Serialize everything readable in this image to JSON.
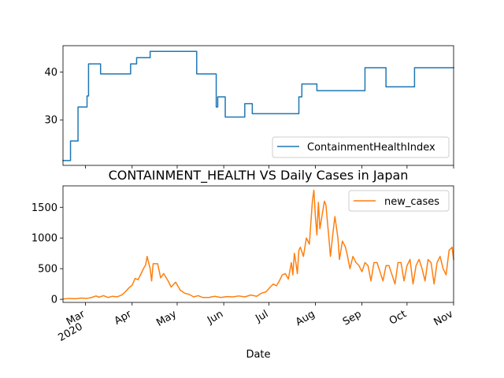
{
  "chart_data": [
    {
      "type": "line",
      "title": "",
      "xlabel": "",
      "ylabel": "",
      "ylim": [
        20.5,
        45.5
      ],
      "yticks": [
        30,
        40
      ],
      "legend": "lower-right",
      "series": [
        {
          "name": "ContainmentHealthIndex",
          "color": "#1f77b4",
          "points": [
            [
              "2020-02-15",
              21.5
            ],
            [
              "2020-02-20",
              21.5
            ],
            [
              "2020-02-20",
              25.6
            ],
            [
              "2020-02-25",
              25.6
            ],
            [
              "2020-02-25",
              32.7
            ],
            [
              "2020-03-02",
              32.7
            ],
            [
              "2020-03-02",
              35.0
            ],
            [
              "2020-03-03",
              35.0
            ],
            [
              "2020-03-03",
              41.7
            ],
            [
              "2020-03-11",
              41.7
            ],
            [
              "2020-03-11",
              39.6
            ],
            [
              "2020-03-31",
              39.6
            ],
            [
              "2020-03-31",
              41.7
            ],
            [
              "2020-04-04",
              41.7
            ],
            [
              "2020-04-04",
              43.0
            ],
            [
              "2020-04-13",
              43.0
            ],
            [
              "2020-04-13",
              44.3
            ],
            [
              "2020-05-14",
              44.3
            ],
            [
              "2020-05-14",
              39.6
            ],
            [
              "2020-05-27",
              39.6
            ],
            [
              "2020-05-27",
              32.7
            ],
            [
              "2020-05-28",
              32.7
            ],
            [
              "2020-05-28",
              34.8
            ],
            [
              "2020-06-02",
              34.8
            ],
            [
              "2020-06-02",
              30.6
            ],
            [
              "2020-06-15",
              30.6
            ],
            [
              "2020-06-15",
              33.4
            ],
            [
              "2020-06-20",
              33.4
            ],
            [
              "2020-06-20",
              31.3
            ],
            [
              "2020-07-21",
              31.3
            ],
            [
              "2020-07-21",
              34.8
            ],
            [
              "2020-07-23",
              34.8
            ],
            [
              "2020-07-23",
              37.5
            ],
            [
              "2020-08-02",
              37.5
            ],
            [
              "2020-08-02",
              36.1
            ],
            [
              "2020-09-03",
              36.1
            ],
            [
              "2020-09-03",
              40.9
            ],
            [
              "2020-09-17",
              40.9
            ],
            [
              "2020-09-17",
              36.9
            ],
            [
              "2020-10-06",
              36.9
            ],
            [
              "2020-10-06",
              40.9
            ],
            [
              "2020-11-01",
              40.9
            ]
          ]
        }
      ]
    },
    {
      "type": "line",
      "title": "CONTAINMENT_HEALTH VS Daily Cases in Japan",
      "xlabel": "Date",
      "ylabel": "",
      "ylim": [
        -50,
        1850
      ],
      "yticks": [
        0,
        500,
        1000,
        1500
      ],
      "x_range": [
        "2020-02-15",
        "2020-11-01"
      ],
      "x_ticks": [
        {
          "date": "2020-03-01",
          "label": "Mar",
          "sublabel": "2020"
        },
        {
          "date": "2020-04-01",
          "label": "Apr",
          "sublabel": ""
        },
        {
          "date": "2020-05-01",
          "label": "May",
          "sublabel": ""
        },
        {
          "date": "2020-06-01",
          "label": "Jun",
          "sublabel": ""
        },
        {
          "date": "2020-07-01",
          "label": "Jul",
          "sublabel": ""
        },
        {
          "date": "2020-08-01",
          "label": "Aug",
          "sublabel": ""
        },
        {
          "date": "2020-09-01",
          "label": "Sep",
          "sublabel": ""
        },
        {
          "date": "2020-10-01",
          "label": "Oct",
          "sublabel": ""
        },
        {
          "date": "2020-11-01",
          "label": "Nov",
          "sublabel": ""
        }
      ],
      "legend": "upper-right",
      "series": [
        {
          "name": "new_cases",
          "color": "#ff7f0e",
          "points": [
            [
              "2020-02-15",
              5
            ],
            [
              "2020-02-19",
              15
            ],
            [
              "2020-02-23",
              10
            ],
            [
              "2020-02-27",
              20
            ],
            [
              "2020-03-02",
              15
            ],
            [
              "2020-03-05",
              30
            ],
            [
              "2020-03-08",
              55
            ],
            [
              "2020-03-10",
              35
            ],
            [
              "2020-03-13",
              60
            ],
            [
              "2020-03-16",
              30
            ],
            [
              "2020-03-19",
              50
            ],
            [
              "2020-03-22",
              40
            ],
            [
              "2020-03-25",
              70
            ],
            [
              "2020-03-27",
              110
            ],
            [
              "2020-03-30",
              190
            ],
            [
              "2020-04-01",
              230
            ],
            [
              "2020-04-03",
              340
            ],
            [
              "2020-04-05",
              320
            ],
            [
              "2020-04-07",
              420
            ],
            [
              "2020-04-09",
              520
            ],
            [
              "2020-04-10",
              560
            ],
            [
              "2020-04-11",
              700
            ],
            [
              "2020-04-13",
              500
            ],
            [
              "2020-04-14",
              300
            ],
            [
              "2020-04-15",
              580
            ],
            [
              "2020-04-18",
              580
            ],
            [
              "2020-04-20",
              350
            ],
            [
              "2020-04-22",
              420
            ],
            [
              "2020-04-25",
              300
            ],
            [
              "2020-04-27",
              200
            ],
            [
              "2020-04-30",
              280
            ],
            [
              "2020-05-03",
              150
            ],
            [
              "2020-05-06",
              100
            ],
            [
              "2020-05-09",
              80
            ],
            [
              "2020-05-12",
              40
            ],
            [
              "2020-05-15",
              60
            ],
            [
              "2020-05-18",
              30
            ],
            [
              "2020-05-22",
              30
            ],
            [
              "2020-05-26",
              50
            ],
            [
              "2020-05-30",
              30
            ],
            [
              "2020-06-03",
              45
            ],
            [
              "2020-06-07",
              40
            ],
            [
              "2020-06-11",
              55
            ],
            [
              "2020-06-15",
              40
            ],
            [
              "2020-06-19",
              70
            ],
            [
              "2020-06-23",
              50
            ],
            [
              "2020-06-26",
              100
            ],
            [
              "2020-06-29",
              120
            ],
            [
              "2020-07-02",
              200
            ],
            [
              "2020-07-04",
              250
            ],
            [
              "2020-07-06",
              220
            ],
            [
              "2020-07-08",
              300
            ],
            [
              "2020-07-10",
              400
            ],
            [
              "2020-07-12",
              420
            ],
            [
              "2020-07-14",
              330
            ],
            [
              "2020-07-16",
              600
            ],
            [
              "2020-07-17",
              400
            ],
            [
              "2020-07-18",
              750
            ],
            [
              "2020-07-19",
              600
            ],
            [
              "2020-07-20",
              420
            ],
            [
              "2020-07-21",
              800
            ],
            [
              "2020-07-22",
              850
            ],
            [
              "2020-07-24",
              700
            ],
            [
              "2020-07-26",
              1000
            ],
            [
              "2020-07-28",
              900
            ],
            [
              "2020-07-29",
              1250
            ],
            [
              "2020-07-30",
              1600
            ],
            [
              "2020-07-31",
              1780
            ],
            [
              "2020-08-01",
              1350
            ],
            [
              "2020-08-02",
              1050
            ],
            [
              "2020-08-03",
              1580
            ],
            [
              "2020-08-04",
              1150
            ],
            [
              "2020-08-06",
              1450
            ],
            [
              "2020-08-07",
              1600
            ],
            [
              "2020-08-08",
              1540
            ],
            [
              "2020-08-10",
              1000
            ],
            [
              "2020-08-11",
              700
            ],
            [
              "2020-08-13",
              1150
            ],
            [
              "2020-08-14",
              1350
            ],
            [
              "2020-08-16",
              1000
            ],
            [
              "2020-08-17",
              650
            ],
            [
              "2020-08-19",
              950
            ],
            [
              "2020-08-21",
              850
            ],
            [
              "2020-08-22",
              750
            ],
            [
              "2020-08-24",
              500
            ],
            [
              "2020-08-26",
              700
            ],
            [
              "2020-08-28",
              600
            ],
            [
              "2020-08-30",
              550
            ],
            [
              "2020-09-01",
              450
            ],
            [
              "2020-09-03",
              600
            ],
            [
              "2020-09-05",
              550
            ],
            [
              "2020-09-07",
              300
            ],
            [
              "2020-09-09",
              600
            ],
            [
              "2020-09-11",
              600
            ],
            [
              "2020-09-13",
              450
            ],
            [
              "2020-09-15",
              300
            ],
            [
              "2020-09-17",
              550
            ],
            [
              "2020-09-19",
              550
            ],
            [
              "2020-09-21",
              400
            ],
            [
              "2020-09-23",
              250
            ],
            [
              "2020-09-25",
              600
            ],
            [
              "2020-09-27",
              600
            ],
            [
              "2020-09-29",
              300
            ],
            [
              "2020-10-01",
              550
            ],
            [
              "2020-10-03",
              650
            ],
            [
              "2020-10-05",
              250
            ],
            [
              "2020-10-07",
              550
            ],
            [
              "2020-10-09",
              650
            ],
            [
              "2020-10-11",
              500
            ],
            [
              "2020-10-13",
              300
            ],
            [
              "2020-10-15",
              650
            ],
            [
              "2020-10-17",
              600
            ],
            [
              "2020-10-19",
              250
            ],
            [
              "2020-10-21",
              600
            ],
            [
              "2020-10-23",
              700
            ],
            [
              "2020-10-25",
              500
            ],
            [
              "2020-10-27",
              400
            ],
            [
              "2020-10-29",
              800
            ],
            [
              "2020-10-31",
              850
            ],
            [
              "2020-11-01",
              650
            ]
          ]
        }
      ]
    }
  ]
}
